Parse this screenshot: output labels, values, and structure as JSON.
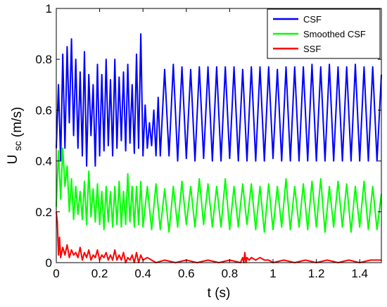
{
  "chart_data": {
    "type": "line",
    "title": "",
    "xlabel": "t (s)",
    "ylabel_main": "U",
    "ylabel_sub": "sc",
    "ylabel_unit": "(m/s)",
    "xlim": [
      0,
      1.5
    ],
    "ylim": [
      0,
      1
    ],
    "xticks": [
      0,
      0.2,
      0.4,
      0.6,
      0.8,
      1,
      1.2,
      1.4
    ],
    "xtick_labels": [
      "0",
      "0.2",
      "0.4",
      "0.6",
      "0.8",
      "1",
      "1.2",
      "1.4"
    ],
    "yticks": [
      0,
      0.2,
      0.4,
      0.6,
      0.8,
      1
    ],
    "ytick_labels": [
      "0",
      "0.2",
      "0.4",
      "0.6",
      "0.8",
      "1"
    ],
    "grid": false,
    "legend_position": "top-right",
    "series": [
      {
        "name": "CSF",
        "color": "#0000ff",
        "x": [
          0,
          0.01,
          0.02,
          0.03,
          0.04,
          0.05,
          0.06,
          0.07,
          0.08,
          0.09,
          0.1,
          0.11,
          0.12,
          0.13,
          0.14,
          0.15,
          0.16,
          0.17,
          0.18,
          0.19,
          0.2,
          0.21,
          0.22,
          0.23,
          0.24,
          0.25,
          0.26,
          0.27,
          0.28,
          0.29,
          0.3,
          0.31,
          0.32,
          0.33,
          0.34,
          0.35,
          0.36,
          0.37,
          0.38,
          0.39,
          0.4,
          0.41,
          0.42,
          0.43,
          0.44,
          0.45,
          0.46,
          0.47,
          0.48,
          0.5,
          0.52,
          0.54,
          0.56,
          0.58,
          0.6,
          0.62,
          0.64,
          0.66,
          0.68,
          0.7,
          0.72,
          0.74,
          0.76,
          0.78,
          0.8,
          0.82,
          0.84,
          0.86,
          0.88,
          0.9,
          0.92,
          0.94,
          0.96,
          0.98,
          1.0,
          1.02,
          1.04,
          1.06,
          1.08,
          1.1,
          1.12,
          1.14,
          1.16,
          1.18,
          1.2,
          1.22,
          1.24,
          1.26,
          1.28,
          1.3,
          1.32,
          1.34,
          1.36,
          1.38,
          1.4,
          1.42,
          1.44,
          1.46,
          1.48,
          1.5
        ],
        "y": [
          0.45,
          0.7,
          0.4,
          0.82,
          0.45,
          0.85,
          0.55,
          0.88,
          0.5,
          0.8,
          0.45,
          0.75,
          0.42,
          0.83,
          0.38,
          0.74,
          0.5,
          0.7,
          0.38,
          0.78,
          0.42,
          0.74,
          0.44,
          0.8,
          0.46,
          0.72,
          0.42,
          0.8,
          0.45,
          0.73,
          0.48,
          0.75,
          0.44,
          0.78,
          0.47,
          0.7,
          0.43,
          0.82,
          0.45,
          0.9,
          0.42,
          0.62,
          0.45,
          0.55,
          0.46,
          0.6,
          0.42,
          0.65,
          0.42,
          0.76,
          0.42,
          0.78,
          0.4,
          0.77,
          0.41,
          0.76,
          0.4,
          0.77,
          0.41,
          0.77,
          0.4,
          0.77,
          0.4,
          0.77,
          0.41,
          0.77,
          0.4,
          0.76,
          0.4,
          0.77,
          0.4,
          0.77,
          0.4,
          0.77,
          0.41,
          0.76,
          0.4,
          0.77,
          0.4,
          0.77,
          0.4,
          0.77,
          0.4,
          0.78,
          0.4,
          0.77,
          0.4,
          0.78,
          0.4,
          0.77,
          0.4,
          0.77,
          0.4,
          0.78,
          0.4,
          0.77,
          0.4,
          0.77,
          0.4,
          0.74
        ]
      },
      {
        "name": "Smoothed CSF",
        "color": "#00ff00",
        "x": [
          0,
          0.01,
          0.02,
          0.03,
          0.04,
          0.05,
          0.06,
          0.07,
          0.08,
          0.09,
          0.1,
          0.11,
          0.12,
          0.13,
          0.14,
          0.15,
          0.16,
          0.17,
          0.18,
          0.19,
          0.2,
          0.21,
          0.22,
          0.23,
          0.24,
          0.25,
          0.26,
          0.27,
          0.28,
          0.29,
          0.3,
          0.31,
          0.32,
          0.33,
          0.34,
          0.35,
          0.36,
          0.37,
          0.38,
          0.39,
          0.4,
          0.42,
          0.44,
          0.46,
          0.48,
          0.5,
          0.52,
          0.54,
          0.56,
          0.58,
          0.6,
          0.62,
          0.64,
          0.66,
          0.68,
          0.7,
          0.72,
          0.74,
          0.76,
          0.78,
          0.8,
          0.82,
          0.84,
          0.86,
          0.88,
          0.9,
          0.92,
          0.94,
          0.96,
          0.98,
          1.0,
          1.02,
          1.04,
          1.06,
          1.08,
          1.1,
          1.12,
          1.14,
          1.16,
          1.18,
          1.2,
          1.22,
          1.24,
          1.26,
          1.28,
          1.3,
          1.32,
          1.34,
          1.36,
          1.38,
          1.4,
          1.42,
          1.44,
          1.46,
          1.48,
          1.5
        ],
        "y": [
          0.22,
          0.44,
          0.25,
          0.45,
          0.3,
          0.38,
          0.2,
          0.33,
          0.17,
          0.3,
          0.19,
          0.28,
          0.17,
          0.32,
          0.15,
          0.36,
          0.18,
          0.29,
          0.16,
          0.31,
          0.15,
          0.28,
          0.13,
          0.3,
          0.16,
          0.28,
          0.14,
          0.3,
          0.15,
          0.32,
          0.14,
          0.28,
          0.15,
          0.35,
          0.16,
          0.3,
          0.14,
          0.3,
          0.15,
          0.32,
          0.14,
          0.3,
          0.13,
          0.31,
          0.13,
          0.29,
          0.12,
          0.3,
          0.14,
          0.32,
          0.15,
          0.3,
          0.14,
          0.33,
          0.15,
          0.31,
          0.14,
          0.3,
          0.14,
          0.33,
          0.13,
          0.3,
          0.14,
          0.31,
          0.15,
          0.31,
          0.13,
          0.3,
          0.12,
          0.31,
          0.13,
          0.3,
          0.14,
          0.33,
          0.13,
          0.3,
          0.14,
          0.31,
          0.13,
          0.32,
          0.14,
          0.33,
          0.12,
          0.3,
          0.14,
          0.32,
          0.14,
          0.31,
          0.12,
          0.3,
          0.14,
          0.32,
          0.13,
          0.3,
          0.13,
          0.27
        ]
      },
      {
        "name": "SSF",
        "color": "#ff0000",
        "x": [
          0,
          0.005,
          0.01,
          0.015,
          0.02,
          0.03,
          0.04,
          0.05,
          0.06,
          0.07,
          0.08,
          0.09,
          0.1,
          0.11,
          0.12,
          0.13,
          0.14,
          0.15,
          0.16,
          0.17,
          0.18,
          0.19,
          0.2,
          0.21,
          0.22,
          0.23,
          0.24,
          0.25,
          0.26,
          0.27,
          0.28,
          0.29,
          0.3,
          0.31,
          0.32,
          0.33,
          0.34,
          0.35,
          0.36,
          0.37,
          0.38,
          0.39,
          0.4,
          0.42,
          0.44,
          0.46,
          0.5,
          0.55,
          0.6,
          0.65,
          0.7,
          0.75,
          0.8,
          0.85,
          0.86,
          0.865,
          0.87,
          0.875,
          0.88,
          0.89,
          0.9,
          0.92,
          0.94,
          0.96,
          0.98,
          1.0,
          1.05,
          1.1,
          1.15,
          1.2,
          1.25,
          1.3,
          1.35,
          1.4,
          1.45,
          1.5
        ],
        "y": [
          0.2,
          0.16,
          0.03,
          0.1,
          0.02,
          0.06,
          0.03,
          0.07,
          0.02,
          0.05,
          0.03,
          0.04,
          0.02,
          0.06,
          0.01,
          0.04,
          0.02,
          0.05,
          0.01,
          0.03,
          0.02,
          0.05,
          0.01,
          0.03,
          0.02,
          0.04,
          0.01,
          0.03,
          0.01,
          0.05,
          0.01,
          0.03,
          0.01,
          0.04,
          0.0,
          0.02,
          0.01,
          0.03,
          0.0,
          0.04,
          0.0,
          0.03,
          0.01,
          0.02,
          0.01,
          0.0,
          0.01,
          0.0,
          0.01,
          0.0,
          0.01,
          0.0,
          0.01,
          0.0,
          0.02,
          0.0,
          0.04,
          0.0,
          0.02,
          0.01,
          0.02,
          0.01,
          0.02,
          0.01,
          0.01,
          0.0,
          0.01,
          0.0,
          0.01,
          0.0,
          0.01,
          0.0,
          0.01,
          0.0,
          0.01,
          0.01
        ]
      }
    ]
  }
}
